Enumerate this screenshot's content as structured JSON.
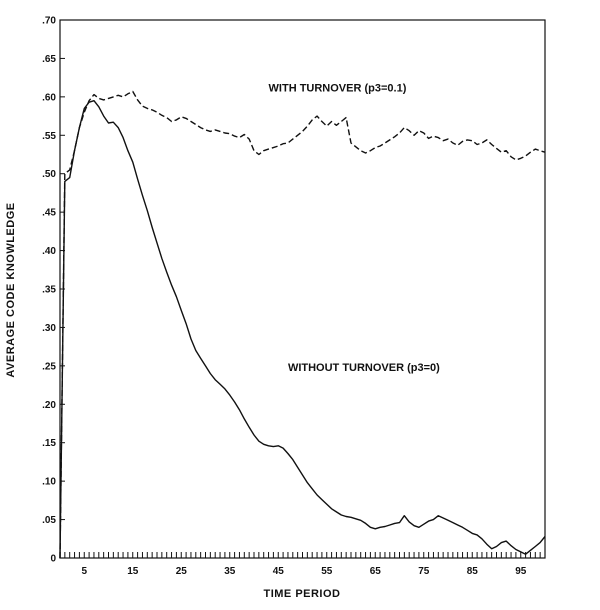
{
  "chart_data": {
    "type": "line",
    "title": "",
    "xlabel": "TIME PERIOD",
    "ylabel": "AVERAGE CODE KNOWLEDGE",
    "xlim": [
      0,
      100
    ],
    "ylim": [
      0,
      0.7
    ],
    "x_ticks": [
      5,
      15,
      25,
      35,
      45,
      55,
      65,
      75,
      85,
      95
    ],
    "y_ticks": [
      0,
      0.05,
      0.1,
      0.15,
      0.2,
      0.25,
      0.3,
      0.35,
      0.4,
      0.45,
      0.5,
      0.55,
      0.6,
      0.65,
      0.7
    ],
    "y_tick_labels": [
      "0",
      ".05",
      ".10",
      ".15",
      ".20",
      ".25",
      ".30",
      ".35",
      ".40",
      ".45",
      ".50",
      ".55",
      ".60",
      ".65",
      ".70"
    ],
    "grid": false,
    "annotations": [
      {
        "text": "WITH TURNOVER (p3=0.1)",
        "x": 43,
        "y": 0.607
      },
      {
        "text": "WITHOUT TURNOVER (p3=0)",
        "x": 47,
        "y": 0.243
      }
    ],
    "series": [
      {
        "style": "dashed",
        "x": [
          0,
          1,
          2,
          3,
          4,
          5,
          6,
          7,
          8,
          9,
          10,
          11,
          12,
          13,
          14,
          15,
          16,
          17,
          18,
          19,
          20,
          21,
          22,
          23,
          24,
          25,
          26,
          27,
          28,
          29,
          30,
          31,
          32,
          33,
          34,
          35,
          36,
          37,
          38,
          39,
          40,
          41,
          42,
          43,
          44,
          45,
          46,
          47,
          48,
          49,
          50,
          51,
          52,
          53,
          54,
          55,
          56,
          57,
          58,
          59,
          60,
          61,
          62,
          63,
          64,
          65,
          66,
          67,
          68,
          69,
          70,
          71,
          72,
          73,
          74,
          75,
          76,
          77,
          78,
          79,
          80,
          81,
          82,
          83,
          84,
          85,
          86,
          87,
          88,
          89,
          90,
          91,
          92,
          93,
          94,
          95,
          96,
          97,
          98,
          99,
          100
        ],
        "y": [
          0,
          0.5,
          0.505,
          0.53,
          0.56,
          0.58,
          0.595,
          0.603,
          0.598,
          0.596,
          0.598,
          0.6,
          0.602,
          0.6,
          0.604,
          0.607,
          0.596,
          0.588,
          0.585,
          0.583,
          0.58,
          0.576,
          0.573,
          0.568,
          0.57,
          0.574,
          0.572,
          0.568,
          0.564,
          0.56,
          0.557,
          0.555,
          0.557,
          0.555,
          0.553,
          0.552,
          0.549,
          0.547,
          0.551,
          0.545,
          0.53,
          0.525,
          0.53,
          0.532,
          0.534,
          0.536,
          0.539,
          0.54,
          0.545,
          0.55,
          0.555,
          0.562,
          0.57,
          0.575,
          0.568,
          0.562,
          0.568,
          0.563,
          0.568,
          0.573,
          0.54,
          0.535,
          0.53,
          0.527,
          0.53,
          0.534,
          0.536,
          0.54,
          0.544,
          0.548,
          0.553,
          0.56,
          0.556,
          0.55,
          0.556,
          0.553,
          0.546,
          0.549,
          0.547,
          0.543,
          0.545,
          0.54,
          0.537,
          0.542,
          0.544,
          0.543,
          0.538,
          0.54,
          0.544,
          0.538,
          0.533,
          0.528,
          0.53,
          0.522,
          0.518,
          0.52,
          0.523,
          0.528,
          0.532,
          0.53,
          0.528
        ]
      },
      {
        "style": "solid",
        "x": [
          0,
          1,
          2,
          3,
          4,
          5,
          6,
          7,
          8,
          9,
          10,
          11,
          12,
          13,
          14,
          15,
          16,
          17,
          18,
          19,
          20,
          21,
          22,
          23,
          24,
          25,
          26,
          27,
          28,
          29,
          30,
          31,
          32,
          33,
          34,
          35,
          36,
          37,
          38,
          39,
          40,
          41,
          42,
          43,
          44,
          45,
          46,
          47,
          48,
          49,
          50,
          51,
          52,
          53,
          54,
          55,
          56,
          57,
          58,
          59,
          60,
          61,
          62,
          63,
          64,
          65,
          66,
          67,
          68,
          69,
          70,
          71,
          72,
          73,
          74,
          75,
          76,
          77,
          78,
          79,
          80,
          81,
          82,
          83,
          84,
          85,
          86,
          87,
          88,
          89,
          90,
          91,
          92,
          93,
          94,
          95,
          96,
          97,
          98,
          99,
          100
        ],
        "y": [
          0,
          0.49,
          0.495,
          0.53,
          0.56,
          0.585,
          0.593,
          0.595,
          0.587,
          0.575,
          0.566,
          0.567,
          0.56,
          0.547,
          0.53,
          0.515,
          0.493,
          0.472,
          0.452,
          0.43,
          0.41,
          0.39,
          0.372,
          0.355,
          0.34,
          0.322,
          0.305,
          0.285,
          0.27,
          0.26,
          0.25,
          0.24,
          0.232,
          0.226,
          0.22,
          0.212,
          0.203,
          0.193,
          0.181,
          0.17,
          0.16,
          0.152,
          0.148,
          0.146,
          0.145,
          0.146,
          0.143,
          0.136,
          0.128,
          0.118,
          0.108,
          0.098,
          0.09,
          0.082,
          0.076,
          0.07,
          0.064,
          0.06,
          0.056,
          0.054,
          0.053,
          0.051,
          0.049,
          0.045,
          0.04,
          0.038,
          0.04,
          0.041,
          0.043,
          0.045,
          0.046,
          0.055,
          0.047,
          0.042,
          0.04,
          0.044,
          0.048,
          0.05,
          0.055,
          0.052,
          0.049,
          0.046,
          0.043,
          0.04,
          0.036,
          0.032,
          0.03,
          0.025,
          0.018,
          0.012,
          0.015,
          0.02,
          0.022,
          0.016,
          0.011,
          0.008,
          0.005,
          0.01,
          0.015,
          0.02,
          0.028
        ]
      }
    ]
  }
}
